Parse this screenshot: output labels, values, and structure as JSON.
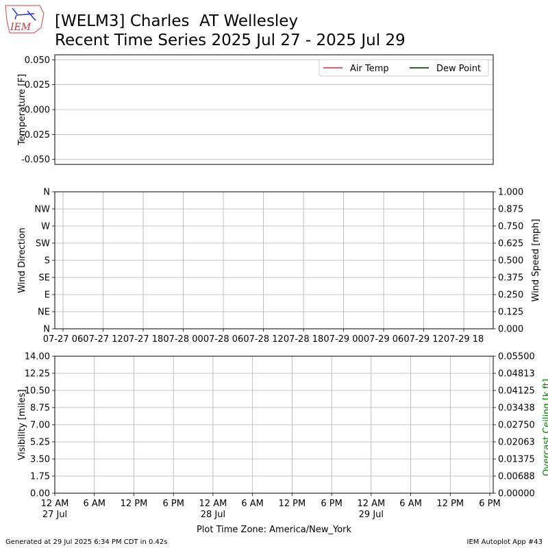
{
  "logo": "IEM",
  "header": {
    "title": "[WELM3] Charles  AT Wellesley",
    "subtitle": "Recent Time Series 2025 Jul 27 - 2025 Jul 29"
  },
  "footer": {
    "left": "Generated at 29 Jul 2025 6:34 PM CDT in 0.42s",
    "right": "IEM Autoplot App #43"
  },
  "chart_data": [
    {
      "type": "line",
      "ylabel": "Temperature [F]",
      "ylim": [
        -0.055,
        0.055
      ],
      "yticks": [
        {
          "value": -0.05,
          "label": "-0.050"
        },
        {
          "value": -0.025,
          "label": "-0.025"
        },
        {
          "value": 0,
          "label": "0.000"
        },
        {
          "value": 0.025,
          "label": "0.025"
        },
        {
          "value": 0.05,
          "label": "0.050"
        }
      ],
      "grid": "y",
      "legend": "upper right",
      "x": [],
      "series": [
        {
          "name": "Air Temp",
          "color": "#e0605e",
          "values": []
        },
        {
          "name": "Dew Point",
          "color": "#2e5f2e",
          "values": []
        }
      ]
    },
    {
      "type": "line",
      "ylabel": "Wind Direction",
      "y2label": "Wind Speed [mph]",
      "xlim": [
        "07-27 04:46",
        "07-29 22:24"
      ],
      "xticks": [
        {
          "value": "07-27 06:00",
          "label": "07-27 06"
        },
        {
          "value": "07-27 12:00",
          "label": "07-27 12"
        },
        {
          "value": "07-27 18:00",
          "label": "07-27 18"
        },
        {
          "value": "07-28 00:00",
          "label": "07-28 00"
        },
        {
          "value": "07-28 06:00",
          "label": "07-28 06"
        },
        {
          "value": "07-28 12:00",
          "label": "07-28 12"
        },
        {
          "value": "07-28 18:00",
          "label": "07-28 18"
        },
        {
          "value": "07-29 00:00",
          "label": "07-29 00"
        },
        {
          "value": "07-29 06:00",
          "label": "07-29 06"
        },
        {
          "value": "07-29 12:00",
          "label": "07-29 12"
        },
        {
          "value": "07-29 18:00",
          "label": "07-29 18"
        }
      ],
      "ylim": [
        0,
        360
      ],
      "yticks": [
        {
          "value": 0,
          "label": "N"
        },
        {
          "value": 45,
          "label": "NE"
        },
        {
          "value": 90,
          "label": "E"
        },
        {
          "value": 135,
          "label": "SE"
        },
        {
          "value": 180,
          "label": "S"
        },
        {
          "value": 225,
          "label": "SW"
        },
        {
          "value": 270,
          "label": "W"
        },
        {
          "value": 315,
          "label": "NW"
        },
        {
          "value": 360,
          "label": "N"
        }
      ],
      "y2lim": [
        0,
        1
      ],
      "y2ticks": [
        {
          "value": 0,
          "label": "0.000"
        },
        {
          "value": 0.125,
          "label": "0.125"
        },
        {
          "value": 0.25,
          "label": "0.250"
        },
        {
          "value": 0.375,
          "label": "0.375"
        },
        {
          "value": 0.5,
          "label": "0.500"
        },
        {
          "value": 0.625,
          "label": "0.625"
        },
        {
          "value": 0.75,
          "label": "0.750"
        },
        {
          "value": 0.875,
          "label": "0.875"
        },
        {
          "value": 1,
          "label": "1.000"
        }
      ],
      "grid": "both"
    },
    {
      "type": "line",
      "ylabel": "Visibility [miles]",
      "y2label": "Overcast Ceiling [k ft]",
      "y2label_color": "#008000",
      "xlabel": "Plot Time Zone: America/New_York",
      "xlim": [
        "07-27 00:00",
        "07-29 18:31"
      ],
      "xticks": [
        {
          "value": "07-27 00:00",
          "label": "12 AM\n27 Jul"
        },
        {
          "value": "07-27 06:00",
          "label": "6 AM"
        },
        {
          "value": "07-27 12:00",
          "label": "12 PM"
        },
        {
          "value": "07-27 18:00",
          "label": "6 PM"
        },
        {
          "value": "07-28 00:00",
          "label": "12 AM\n28 Jul"
        },
        {
          "value": "07-28 06:00",
          "label": "6 AM"
        },
        {
          "value": "07-28 12:00",
          "label": "12 PM"
        },
        {
          "value": "07-28 18:00",
          "label": "6 PM"
        },
        {
          "value": "07-29 00:00",
          "label": "12 AM\n29 Jul"
        },
        {
          "value": "07-29 06:00",
          "label": "6 AM"
        },
        {
          "value": "07-29 12:00",
          "label": "12 PM"
        },
        {
          "value": "07-29 18:00",
          "label": "6 PM"
        }
      ],
      "ylim": [
        0,
        14
      ],
      "yticks": [
        {
          "value": 0,
          "label": "0.00"
        },
        {
          "value": 1.75,
          "label": "1.75"
        },
        {
          "value": 3.5,
          "label": "3.50"
        },
        {
          "value": 5.25,
          "label": "5.25"
        },
        {
          "value": 7,
          "label": "7.00"
        },
        {
          "value": 8.75,
          "label": "8.75"
        },
        {
          "value": 10.5,
          "label": "10.50"
        },
        {
          "value": 12.25,
          "label": "12.25"
        },
        {
          "value": 14,
          "label": "14.00"
        }
      ],
      "y2lim": [
        0,
        0.055
      ],
      "y2ticks": [
        {
          "value": 0,
          "label": "0.00000"
        },
        {
          "value": 0.006875,
          "label": "0.00688"
        },
        {
          "value": 0.01375,
          "label": "0.01375"
        },
        {
          "value": 0.020625,
          "label": "0.02063"
        },
        {
          "value": 0.0275,
          "label": "0.02750"
        },
        {
          "value": 0.034375,
          "label": "0.03438"
        },
        {
          "value": 0.04125,
          "label": "0.04125"
        },
        {
          "value": 0.048125,
          "label": "0.04813"
        },
        {
          "value": 0.055,
          "label": "0.05500"
        }
      ],
      "grid": "both"
    }
  ]
}
